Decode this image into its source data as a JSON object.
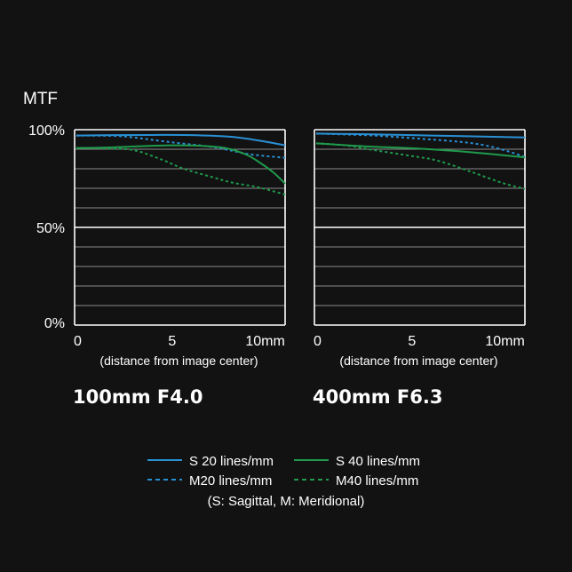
{
  "chart_data": [
    {
      "type": "line",
      "title": "100mm F4.0",
      "ylabel": "MTF",
      "xlabel": "(distance from image center)",
      "x_ticks": [
        "0",
        "5",
        "10mm"
      ],
      "y_ticks": [
        "100%",
        "50%",
        "0%"
      ],
      "xlim": [
        0,
        10.9
      ],
      "ylim": [
        0,
        100
      ],
      "grid": true,
      "series": [
        {
          "name": "S 20 lines/mm",
          "color": "#2a90d4",
          "dash": false,
          "x": [
            0,
            2,
            4,
            6,
            8,
            9.5,
            10.9
          ],
          "y": [
            97,
            97.2,
            97.3,
            97.2,
            96.4,
            94.5,
            92
          ]
        },
        {
          "name": "M20 lines/mm",
          "color": "#2a90d4",
          "dash": true,
          "x": [
            0,
            2,
            3,
            5,
            7.2,
            9,
            10.9
          ],
          "y": [
            97,
            96.8,
            96,
            93.5,
            91,
            87.5,
            85.6
          ]
        },
        {
          "name": "S 40 lines/mm",
          "color": "#1f9a4c",
          "dash": false,
          "x": [
            0,
            2,
            5,
            7.5,
            8.8,
            9.6,
            10.3,
            10.9
          ],
          "y": [
            90.6,
            91,
            92,
            91,
            87.5,
            83,
            78,
            72.4
          ]
        },
        {
          "name": "M40 lines/mm",
          "color": "#1f9a4c",
          "dash": true,
          "x": [
            0,
            1.5,
            3,
            4.5,
            5.6,
            7,
            8.1,
            9.5,
            10.9
          ],
          "y": [
            90.6,
            90.4,
            89.5,
            84.5,
            80,
            76,
            73,
            70.5,
            66.8
          ]
        }
      ]
    },
    {
      "type": "line",
      "title": "400mm F6.3",
      "xlabel": "(distance from image center)",
      "x_ticks": [
        "0",
        "5",
        "10mm"
      ],
      "xlim": [
        0,
        10.9
      ],
      "ylim": [
        0,
        100
      ],
      "grid": true,
      "series": [
        {
          "name": "S 20 lines/mm",
          "color": "#2a90d4",
          "dash": false,
          "x": [
            0,
            3,
            6,
            9,
            10.9
          ],
          "y": [
            98,
            97.6,
            97,
            96.4,
            96
          ]
        },
        {
          "name": "M20 lines/mm",
          "color": "#2a90d4",
          "dash": true,
          "x": [
            0,
            3,
            5.4,
            7.5,
            8.8,
            10,
            10.9
          ],
          "y": [
            98,
            97,
            95.4,
            93.8,
            92,
            89,
            86
          ]
        },
        {
          "name": "S 40 lines/mm",
          "color": "#1f9a4c",
          "dash": false,
          "x": [
            0,
            2.5,
            5.4,
            8,
            10.9
          ],
          "y": [
            93,
            91.5,
            90.3,
            88.5,
            85.8
          ]
        },
        {
          "name": "M40 lines/mm",
          "color": "#1f9a4c",
          "dash": true,
          "x": [
            0,
            1.5,
            3.1,
            5,
            6.2,
            7.5,
            8.5,
            9.8,
            10.9
          ],
          "y": [
            93,
            92,
            89.4,
            86.5,
            84.5,
            80.5,
            77,
            72.5,
            69.7
          ]
        }
      ]
    }
  ],
  "legend": {
    "items": [
      {
        "label": "S 20 lines/mm",
        "color": "#2a90d4",
        "dash": false
      },
      {
        "label": "S 40 lines/mm",
        "color": "#1f9a4c",
        "dash": false
      },
      {
        "label": "M20 lines/mm",
        "color": "#2a90d4",
        "dash": true
      },
      {
        "label": "M40 lines/mm",
        "color": "#1f9a4c",
        "dash": true
      }
    ],
    "note": "(S: Sagittal, M: Meridional)"
  },
  "colors": {
    "background": "#121212",
    "grid": "#8a8a8a",
    "frame": "#ffffff"
  }
}
